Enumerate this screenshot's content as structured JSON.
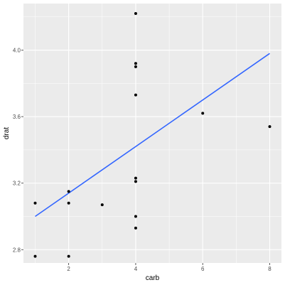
{
  "chart_data": {
    "type": "scatter",
    "xlabel": "carb",
    "ylabel": "drat",
    "xlim": [
      0.65,
      8.35
    ],
    "ylim": [
      2.72,
      4.28
    ],
    "x_ticks": [
      2,
      4,
      6,
      8
    ],
    "y_ticks": [
      2.8,
      3.2,
      3.6,
      4.0
    ],
    "x_tick_labels": [
      "2",
      "4",
      "6",
      "8"
    ],
    "y_tick_labels": [
      "2.8",
      "3.2",
      "3.6",
      "4.0"
    ],
    "grid": true,
    "legend": "none",
    "colors": {
      "panel": "#ebebeb",
      "grid": "#ffffff",
      "points": "#000000",
      "trend": "#3366ff"
    },
    "points": [
      {
        "x": 1,
        "y": 3.08
      },
      {
        "x": 1,
        "y": 2.76
      },
      {
        "x": 2,
        "y": 3.15
      },
      {
        "x": 2,
        "y": 3.08
      },
      {
        "x": 2,
        "y": 2.76
      },
      {
        "x": 3,
        "y": 3.07
      },
      {
        "x": 4,
        "y": 4.22
      },
      {
        "x": 4,
        "y": 3.92
      },
      {
        "x": 4,
        "y": 3.9
      },
      {
        "x": 4,
        "y": 3.73
      },
      {
        "x": 4,
        "y": 3.23
      },
      {
        "x": 4,
        "y": 3.21
      },
      {
        "x": 4,
        "y": 3.0
      },
      {
        "x": 4,
        "y": 2.93
      },
      {
        "x": 6,
        "y": 3.62
      },
      {
        "x": 8,
        "y": 3.54
      }
    ],
    "trend_line": {
      "type": "linear",
      "x": [
        1,
        8
      ],
      "y": [
        3.0,
        3.98
      ]
    }
  }
}
